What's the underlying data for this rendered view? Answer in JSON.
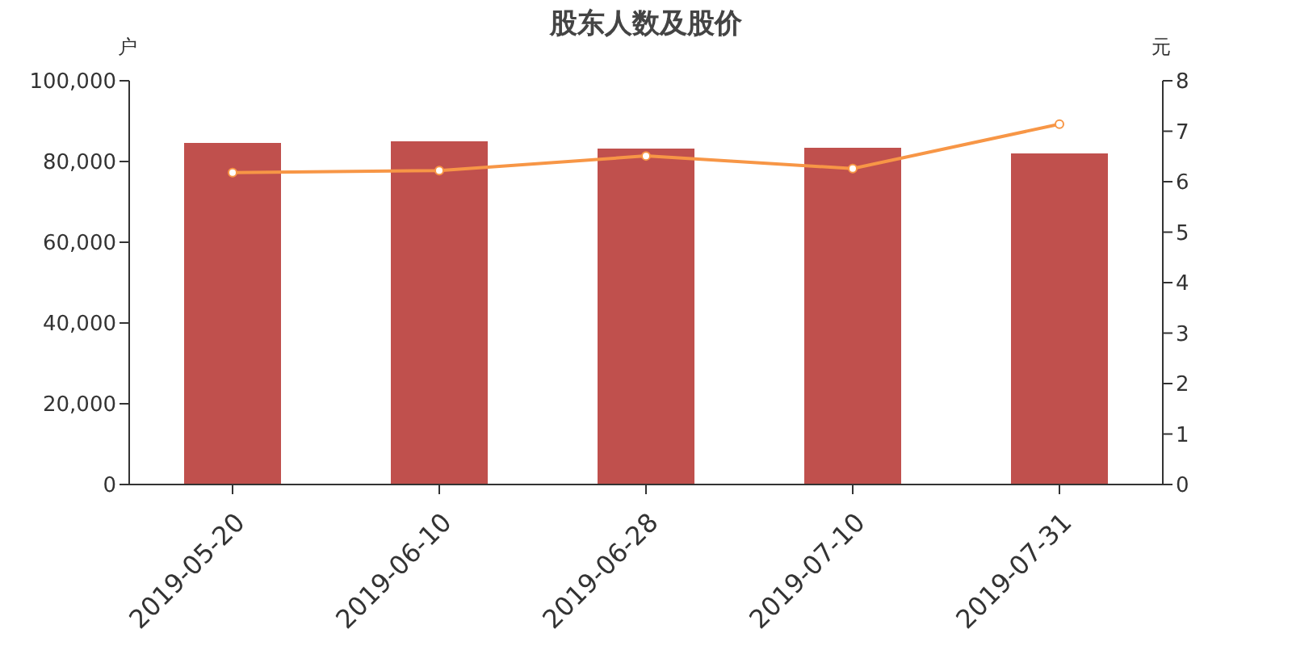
{
  "chart_data": {
    "type": "bar",
    "title": "股东人数及股价",
    "ylabel": "户",
    "y2label": "元",
    "categories": [
      "2019-05-20",
      "2019-06-10",
      "2019-06-28",
      "2019-07-10",
      "2019-07-31"
    ],
    "series": [
      {
        "color": "#c0504d",
        "values": [
          84600,
          85000,
          83200,
          83400,
          82000
        ]
      },
      {
        "type": "line",
        "axis": "y2",
        "color": "#f79646",
        "values": [
          6.18,
          6.22,
          6.51,
          6.26,
          7.14
        ]
      }
    ],
    "ylim": [
      0,
      100000
    ],
    "yticks": [
      0,
      {
        "value": 20000,
        "label": "20,000"
      },
      {
        "value": 40000,
        "label": "40,000"
      },
      {
        "value": 60000,
        "label": "60,000"
      },
      {
        "value": 80000,
        "label": "80,000"
      },
      {
        "value": 100000,
        "label": "100,000"
      }
    ],
    "y2lim": [
      0,
      8
    ],
    "y2ticks": [
      0,
      1,
      2,
      3,
      4,
      5,
      6,
      7,
      8
    ],
    "grid": false,
    "legend": false,
    "marker": "circle"
  }
}
